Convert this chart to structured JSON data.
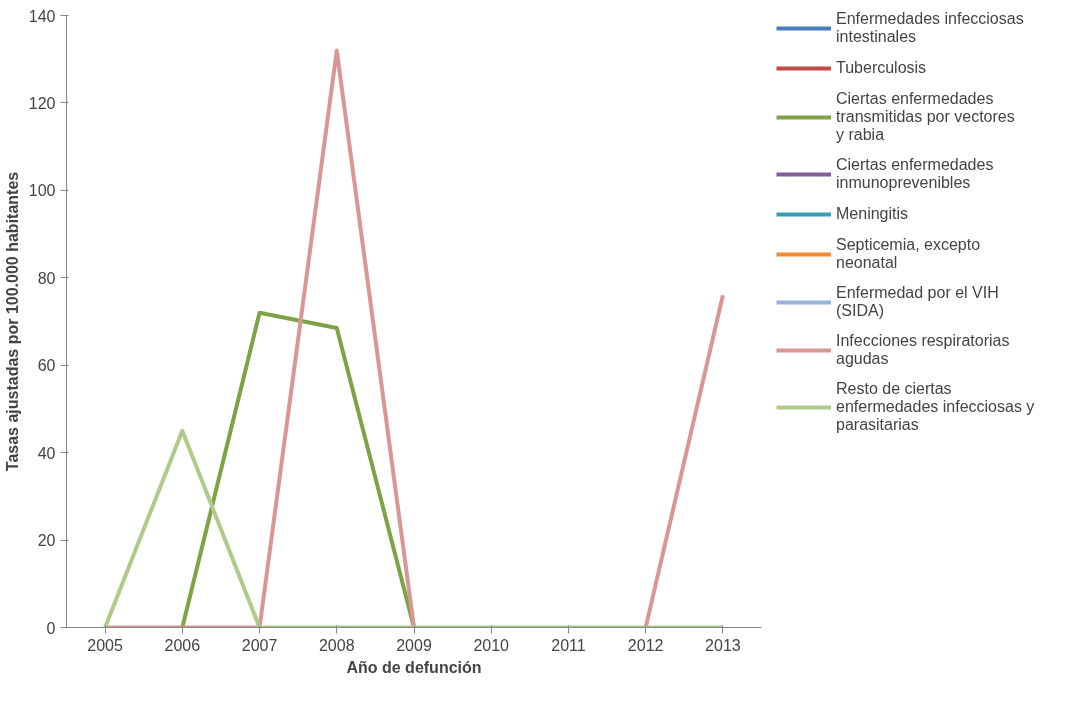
{
  "chart_data": {
    "type": "line",
    "xlabel": "Año de defunción",
    "ylabel": "Tasas ajustadas por 100.000 habitantes",
    "categories": [
      "2005",
      "2006",
      "2007",
      "2008",
      "2009",
      "2010",
      "2011",
      "2012",
      "2013"
    ],
    "ylim": [
      0,
      140
    ],
    "yticks": [
      0,
      20,
      40,
      60,
      80,
      100,
      120,
      140
    ],
    "grid": false,
    "legend": "right",
    "marker": "none",
    "line_style": "solid",
    "series": [
      {
        "name": "Enfermedades infecciosas intestinales",
        "color": "#4a7ebb",
        "values": [
          null,
          null,
          null,
          null,
          null,
          null,
          null,
          null,
          null
        ]
      },
      {
        "name": "Tuberculosis",
        "color": "#be4b48",
        "values": [
          null,
          null,
          null,
          null,
          null,
          null,
          null,
          null,
          null
        ]
      },
      {
        "name": "Ciertas enfermedades transmitidas por vectores y rabia",
        "color": "#7ea346",
        "values": [
          null,
          0,
          72,
          68.5,
          0,
          null,
          null,
          null,
          null
        ]
      },
      {
        "name": "Ciertas enfermedades inmunoprevenibles",
        "color": "#7d5f9e",
        "values": [
          null,
          null,
          null,
          null,
          null,
          null,
          null,
          null,
          null
        ]
      },
      {
        "name": "Meningitis",
        "color": "#3b9cb8",
        "values": [
          null,
          null,
          null,
          null,
          null,
          null,
          null,
          null,
          null
        ]
      },
      {
        "name": "Septicemia, excepto neonatal",
        "color": "#f08a34",
        "values": [
          null,
          null,
          null,
          null,
          null,
          null,
          null,
          null,
          null
        ]
      },
      {
        "name": "Enfermedad por el VIH (SIDA)",
        "color": "#98b3dc",
        "values": [
          null,
          null,
          null,
          null,
          null,
          null,
          null,
          null,
          null
        ]
      },
      {
        "name": "Infecciones respiratorias agudas",
        "color": "#d99694",
        "values": [
          0,
          0,
          0,
          132,
          0,
          null,
          null,
          0,
          76
        ]
      },
      {
        "name": "Resto de ciertas enfermedades infecciosas y parasitarias",
        "color": "#b0ca8a",
        "values": [
          0,
          45,
          0,
          0,
          0,
          0,
          0,
          0,
          0
        ]
      }
    ]
  }
}
